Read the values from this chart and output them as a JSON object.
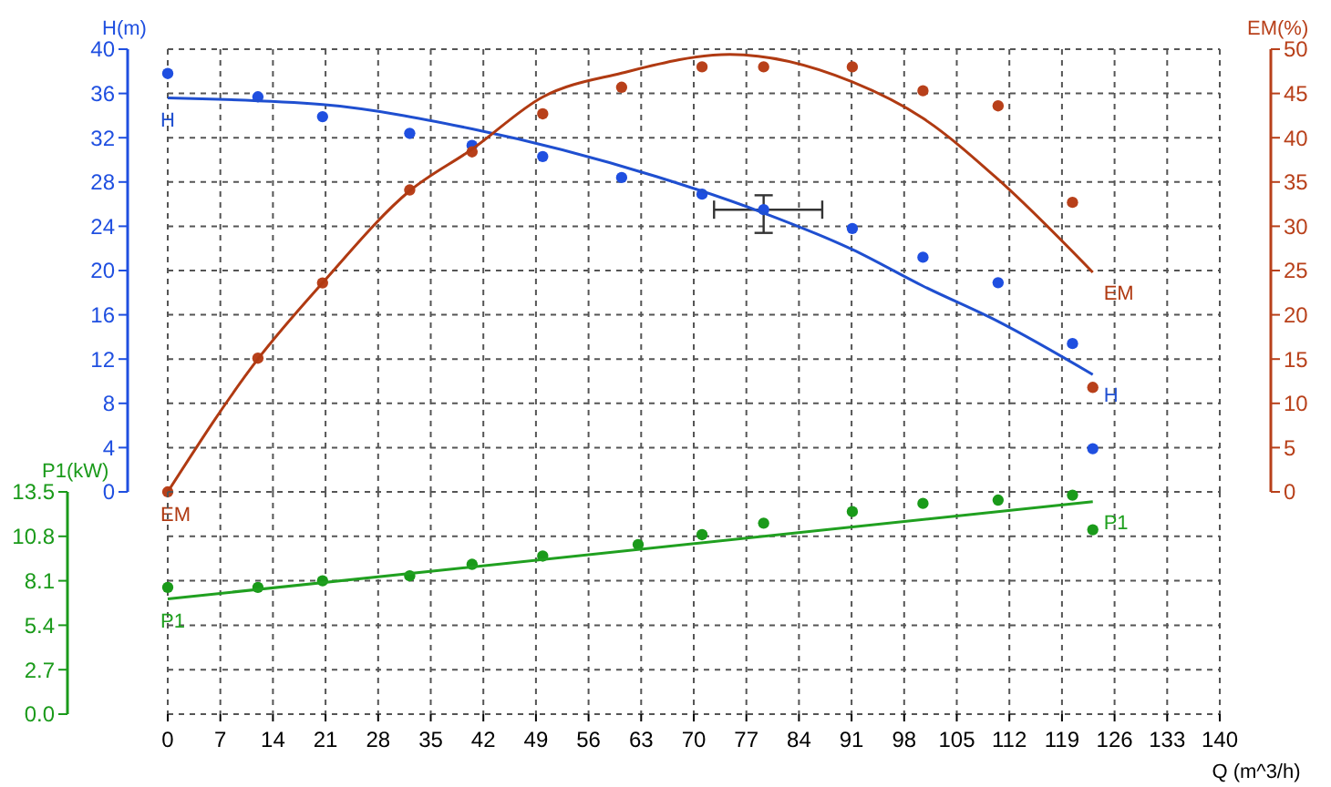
{
  "chart_data": [
    {
      "type": "scatter",
      "ylabel": "H(m)",
      "y2label": "EM(%)",
      "tick_labels": "y",
      "xlim": [
        0,
        140
      ],
      "xticks": [
        0,
        7,
        14,
        21,
        28,
        35,
        42,
        49,
        56,
        63,
        70,
        77,
        84,
        91,
        98,
        105,
        112,
        119,
        126,
        133,
        140
      ],
      "ylim": [
        0,
        40
      ],
      "yticks": [
        0,
        4,
        8,
        12,
        16,
        20,
        24,
        28,
        32,
        36,
        40
      ],
      "y2lim": [
        0,
        50
      ],
      "y2ticks": [
        0,
        5,
        10,
        15,
        20,
        25,
        30,
        35,
        40,
        45,
        50
      ],
      "grid": true,
      "marker": "circle",
      "series": [
        {
          "type": "scatter",
          "axis": "y",
          "color": "#1f4fe0",
          "x": [
            0,
            12,
            20.6,
            32.2,
            40.5,
            49.9,
            60.4,
            71.1,
            79.3,
            91.1,
            100.5,
            110.5,
            120.4,
            123.1
          ],
          "values": [
            37.8,
            35.7,
            33.9,
            32.4,
            31.3,
            30.3,
            28.4,
            26.9,
            25.5,
            23.8,
            21.2,
            18.9,
            13.4,
            3.9
          ],
          "errors": [
            null,
            null,
            null,
            null,
            null,
            null,
            null,
            null,
            [
              23.4,
              26.8
            ],
            null,
            null,
            null,
            null,
            null
          ],
          "xerrors": [
            null,
            null,
            null,
            null,
            null,
            null,
            null,
            null,
            [
              72.7,
              87.1
            ],
            null,
            null,
            null,
            null,
            null
          ]
        },
        {
          "type": "line",
          "name": "H",
          "axis": "y",
          "color": "#1f4fd0",
          "marker": "none",
          "x": [
            0,
            20.6,
            40.5,
            65,
            79.3,
            91.1,
            100.5,
            110.5,
            123.1
          ],
          "values": [
            35.6,
            35.0,
            32.8,
            28.5,
            25.2,
            21.9,
            18.6,
            15.4,
            10.6
          ]
        },
        {
          "type": "scatter",
          "axis": "y2",
          "color": "#b8401a",
          "x": [
            0,
            12,
            20.6,
            32.2,
            40.5,
            49.9,
            60.4,
            71.1,
            79.3,
            91.1,
            100.5,
            110.5,
            120.4,
            123.1
          ],
          "values": [
            0,
            15.1,
            23.6,
            34.1,
            38.4,
            42.7,
            45.7,
            48,
            48,
            48,
            45.3,
            43.6,
            32.7,
            11.8
          ]
        },
        {
          "type": "line",
          "name": "EM",
          "axis": "y2",
          "color": "#b03a12",
          "marker": "none",
          "x": [
            0,
            12,
            20.6,
            32.2,
            40.5,
            49.9,
            60.4,
            74.8,
            91.1,
            100.5,
            110.5,
            123.1
          ],
          "values": [
            0,
            15,
            23.6,
            34,
            38.7,
            44.6,
            47.3,
            49.4,
            46.3,
            42.2,
            35.3,
            24.8
          ]
        }
      ]
    },
    {
      "type": "scatter",
      "xlabel": "Q (m^3/h)",
      "ylabel": "P1(kW)",
      "xlim": [
        0,
        140
      ],
      "xticks": [
        0,
        7,
        14,
        21,
        28,
        35,
        42,
        49,
        56,
        63,
        70,
        77,
        84,
        91,
        98,
        105,
        112,
        119,
        126,
        133,
        140
      ],
      "ylim": [
        0,
        13.5
      ],
      "yticks": [
        {
          "value": 0,
          "label": "0.0"
        },
        2.7,
        5.4,
        8.1,
        10.8,
        13.5
      ],
      "grid": true,
      "marker": "circle",
      "series": [
        {
          "type": "scatter",
          "axis": "y",
          "color": "#1a9a1a",
          "x": [
            0,
            12,
            20.6,
            32.2,
            40.5,
            49.9,
            62.6,
            71.1,
            79.3,
            91.1,
            100.5,
            110.5,
            120.4,
            123.1
          ],
          "values": [
            7.7,
            7.7,
            8.1,
            8.4,
            9.1,
            9.6,
            10.3,
            10.9,
            11.6,
            12.3,
            12.8,
            13.0,
            13.3,
            11.2
          ]
        },
        {
          "type": "line",
          "name": "P1",
          "axis": "y",
          "color": "#20a020",
          "marker": "none",
          "x": [
            0,
            123.1
          ],
          "values": [
            7.0,
            12.9
          ]
        }
      ]
    }
  ]
}
